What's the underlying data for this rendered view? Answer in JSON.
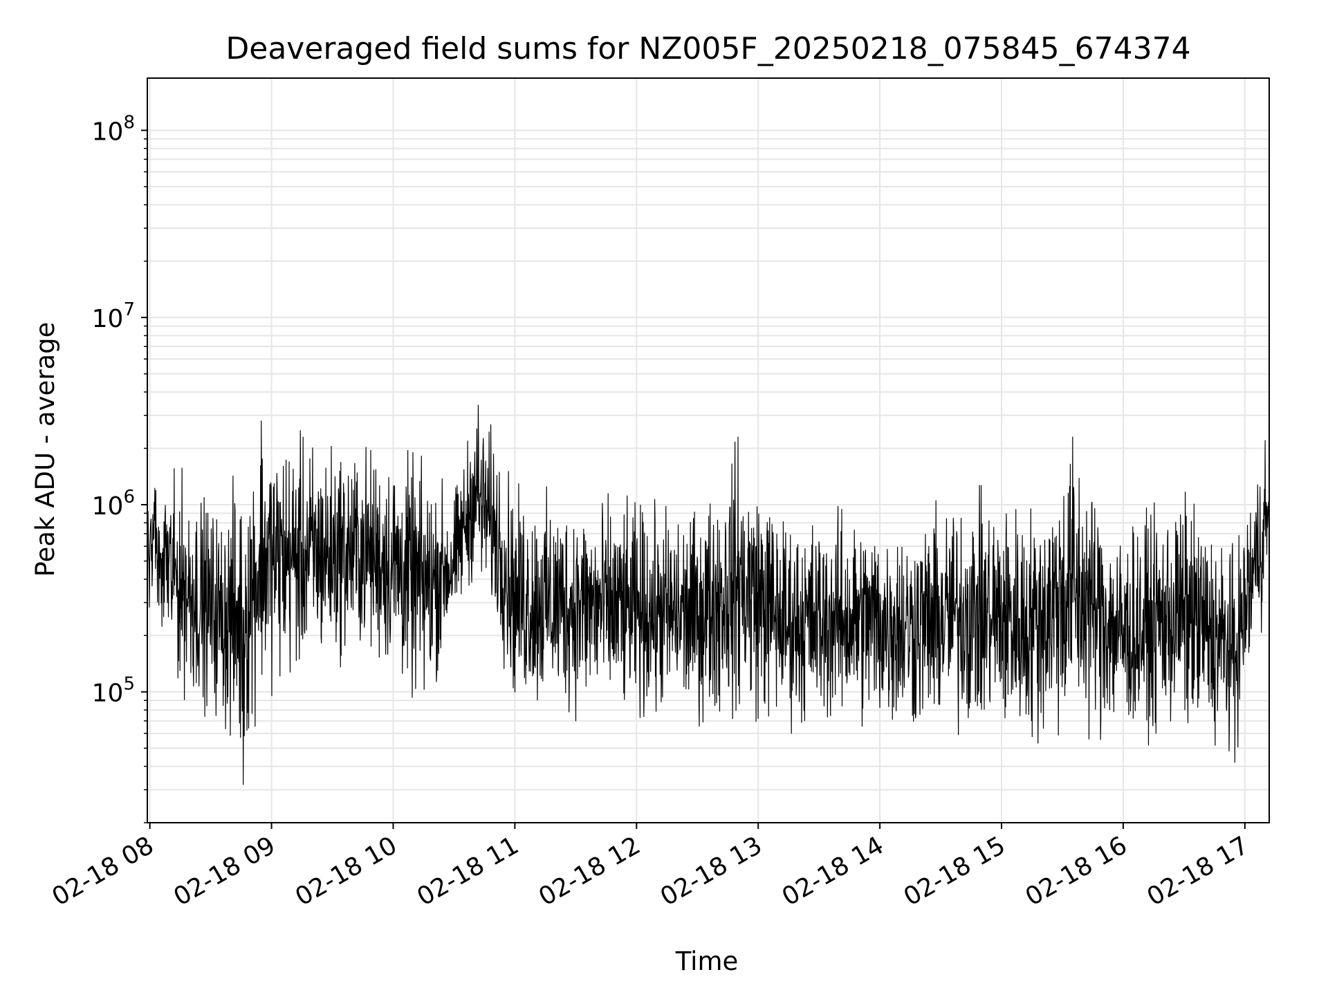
{
  "chart_data": {
    "type": "line",
    "title": "Deaveraged field sums for NZ005F_20250218_075845_674374",
    "xlabel": "Time",
    "ylabel": "Peak ADU - average",
    "y_scale": "log",
    "grid": true,
    "grid_minor": true,
    "line_color": "#000000",
    "grid_color": "#e6e6e6",
    "x_start": "2025-02-18 07:58:45",
    "x_end": "2025-02-18 17:12:00",
    "xlim": [
      "2025-02-18 07:58:45",
      "2025-02-18 17:12:00"
    ],
    "ylim": [
      20000,
      190000000
    ],
    "x_ticks": [
      {
        "value": "2025-02-18 08:00",
        "label": "02-18 08"
      },
      {
        "value": "2025-02-18 09:00",
        "label": "02-18 09"
      },
      {
        "value": "2025-02-18 10:00",
        "label": "02-18 10"
      },
      {
        "value": "2025-02-18 11:00",
        "label": "02-18 11"
      },
      {
        "value": "2025-02-18 12:00",
        "label": "02-18 12"
      },
      {
        "value": "2025-02-18 13:00",
        "label": "02-18 13"
      },
      {
        "value": "2025-02-18 14:00",
        "label": "02-18 14"
      },
      {
        "value": "2025-02-18 15:00",
        "label": "02-18 15"
      },
      {
        "value": "2025-02-18 16:00",
        "label": "02-18 16"
      },
      {
        "value": "2025-02-18 17:00",
        "label": "02-18 17"
      }
    ],
    "y_ticks": [
      {
        "value": 100000,
        "base": "10",
        "exp": "5"
      },
      {
        "value": 1000000,
        "base": "10",
        "exp": "6"
      },
      {
        "value": 10000000,
        "base": "10",
        "exp": "7"
      },
      {
        "value": 100000000,
        "base": "10",
        "exp": "8"
      }
    ],
    "envelope": [
      {
        "x": "2025-02-18 07:59",
        "low": 300000,
        "high": 1400000
      },
      {
        "x": "2025-02-18 08:15",
        "low": 90000,
        "high": 1600000
      },
      {
        "x": "2025-02-18 08:35",
        "low": 65000,
        "high": 1000000
      },
      {
        "x": "2025-02-18 08:45",
        "low": 32000,
        "high": 1800000
      },
      {
        "x": "2025-02-18 08:55",
        "low": 90000,
        "high": 2800000
      },
      {
        "x": "2025-02-18 09:20",
        "low": 120000,
        "high": 2400000
      },
      {
        "x": "2025-02-18 09:45",
        "low": 150000,
        "high": 2200000
      },
      {
        "x": "2025-02-18 10:00",
        "low": 110000,
        "high": 2100000
      },
      {
        "x": "2025-02-18 10:15",
        "low": 70000,
        "high": 1800000
      },
      {
        "x": "2025-02-18 10:30",
        "low": 200000,
        "high": 1200000
      },
      {
        "x": "2025-02-18 10:40",
        "low": 400000,
        "high": 3400000
      },
      {
        "x": "2025-02-18 10:50",
        "low": 220000,
        "high": 2600000
      },
      {
        "x": "2025-02-18 11:00",
        "low": 75000,
        "high": 1300000
      },
      {
        "x": "2025-02-18 11:30",
        "low": 70000,
        "high": 1200000
      },
      {
        "x": "2025-02-18 12:00",
        "low": 65000,
        "high": 1100000
      },
      {
        "x": "2025-02-18 12:30",
        "low": 65000,
        "high": 1000000
      },
      {
        "x": "2025-02-18 12:50",
        "low": 65000,
        "high": 2300000
      },
      {
        "x": "2025-02-18 13:15",
        "low": 60000,
        "high": 900000
      },
      {
        "x": "2025-02-18 13:45",
        "low": 60000,
        "high": 1000000
      },
      {
        "x": "2025-02-18 14:15",
        "low": 55000,
        "high": 900000
      },
      {
        "x": "2025-02-18 14:45",
        "low": 55000,
        "high": 1300000
      },
      {
        "x": "2025-02-18 15:15",
        "low": 47000,
        "high": 1100000
      },
      {
        "x": "2025-02-18 15:35",
        "low": 55000,
        "high": 2300000
      },
      {
        "x": "2025-02-18 16:00",
        "low": 50000,
        "high": 800000
      },
      {
        "x": "2025-02-18 16:30",
        "low": 55000,
        "high": 1300000
      },
      {
        "x": "2025-02-18 16:55",
        "low": 42000,
        "high": 600000
      },
      {
        "x": "2025-02-18 17:08",
        "low": 200000,
        "high": 2200000
      },
      {
        "x": "2025-02-18 17:12",
        "low": 600000,
        "high": 1200000
      }
    ],
    "spikes": [
      {
        "x": "2025-02-18 08:46",
        "y": 32000
      },
      {
        "x": "2025-02-18 08:55",
        "y": 2800000
      },
      {
        "x": "2025-02-18 10:42",
        "y": 3400000
      },
      {
        "x": "2025-02-18 12:50",
        "y": 2300000
      },
      {
        "x": "2025-02-18 15:35",
        "y": 2300000
      },
      {
        "x": "2025-02-18 16:55",
        "y": 42000
      },
      {
        "x": "2025-02-18 17:10",
        "y": 2200000
      }
    ]
  }
}
